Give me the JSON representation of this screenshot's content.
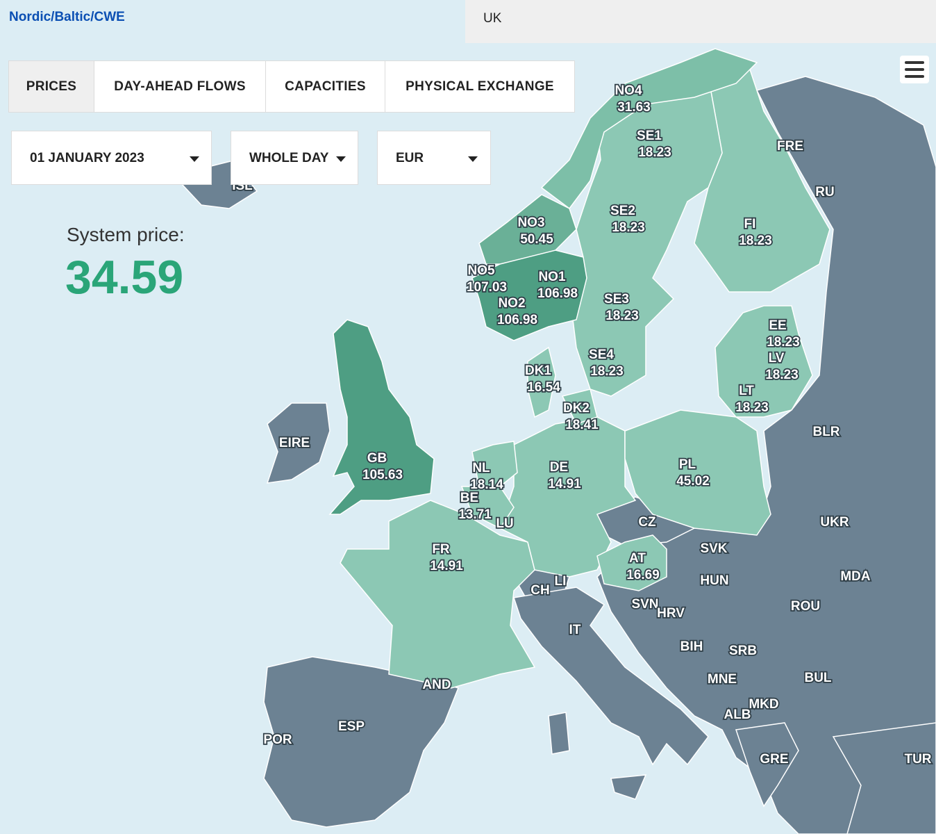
{
  "header": {
    "region": "Nordic/Baltic/CWE",
    "uk": "UK"
  },
  "tabs": [
    "PRICES",
    "DAY-AHEAD FLOWS",
    "CAPACITIES",
    "PHYSICAL EXCHANGE"
  ],
  "filters": {
    "date": "01 JANUARY 2023",
    "period": "WHOLE DAY",
    "currency": "EUR"
  },
  "system_price": {
    "label": "System price:",
    "value": "34.59"
  },
  "zones": [
    {
      "name": "NO4",
      "price": "31.63"
    },
    {
      "name": "SE1",
      "price": "18.23"
    },
    {
      "name": "SE2",
      "price": "18.23"
    },
    {
      "name": "NO3",
      "price": "50.45"
    },
    {
      "name": "FI",
      "price": "18.23"
    },
    {
      "name": "NO5",
      "price": "107.03"
    },
    {
      "name": "NO1",
      "price": "106.98"
    },
    {
      "name": "NO2",
      "price": "106.98"
    },
    {
      "name": "SE3",
      "price": "18.23"
    },
    {
      "name": "EE",
      "price": "18.23"
    },
    {
      "name": "LV",
      "price": "18.23"
    },
    {
      "name": "SE4",
      "price": "18.23"
    },
    {
      "name": "DK1",
      "price": "16.54"
    },
    {
      "name": "LT",
      "price": "18.23"
    },
    {
      "name": "DK2",
      "price": "18.41"
    },
    {
      "name": "GB",
      "price": "105.63"
    },
    {
      "name": "NL",
      "price": "18.14"
    },
    {
      "name": "DE",
      "price": "14.91"
    },
    {
      "name": "PL",
      "price": "45.02"
    },
    {
      "name": "BE",
      "price": "13.71"
    },
    {
      "name": "FR",
      "price": "14.91"
    },
    {
      "name": "AT",
      "price": "16.69"
    }
  ],
  "countries": [
    "ISL",
    "FRE",
    "RU",
    "BLR",
    "UKR",
    "EIRE",
    "LU",
    "CZ",
    "SVK",
    "HUN",
    "MDA",
    "ROU",
    "CH",
    "LI",
    "SVN",
    "HRV",
    "IT",
    "BIH",
    "SRB",
    "BUL",
    "MNE",
    "MKD",
    "ALB",
    "GRE",
    "TUR",
    "AND",
    "ESP",
    "POR"
  ]
}
